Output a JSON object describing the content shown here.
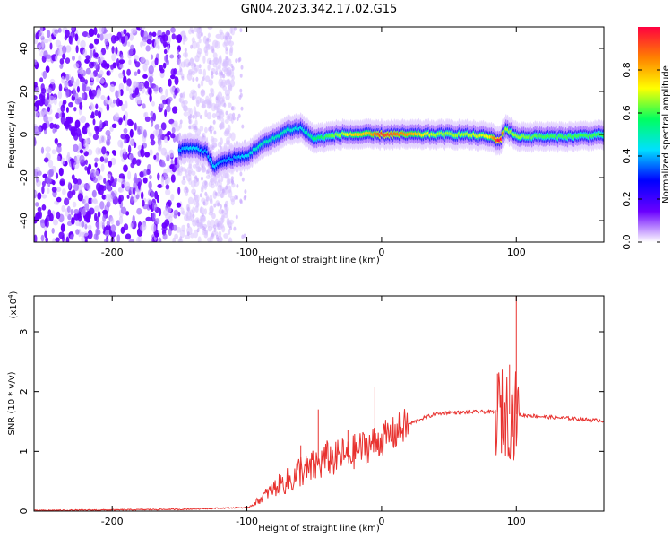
{
  "figure_title": "GN04.2023.342.17.02.G15",
  "chart_data": [
    {
      "type": "heatmap",
      "xlabel": "Height of straight line (km)",
      "ylabel": "Frequency (Hz)",
      "xlim": [
        -258,
        165
      ],
      "ylim": [
        -50,
        50
      ],
      "x_ticks": [
        -200,
        -100,
        0,
        100
      ],
      "y_ticks": [
        -40,
        -20,
        0,
        20,
        40
      ],
      "colorbar": {
        "label": "Normalized spectral amplitude",
        "range": [
          0,
          1
        ],
        "ticks": [
          0.0,
          0.2,
          0.4,
          0.6,
          0.8
        ],
        "tick_labels": [
          "0.0",
          "0.2",
          "0.4",
          "0.6",
          "0.8"
        ],
        "colors": [
          "#ffffff",
          "#6a00ff",
          "#0000ff",
          "#00e0ff",
          "#00ff60",
          "#ffff00",
          "#ff8000",
          "#ff0040"
        ]
      },
      "ridge": {
        "x": [
          -150,
          -140,
          -130,
          -125,
          -120,
          -110,
          -100,
          -90,
          -80,
          -70,
          -60,
          -50,
          -40,
          -30,
          -20,
          -10,
          0,
          20,
          40,
          60,
          80,
          88,
          92,
          100,
          120,
          140,
          165
        ],
        "freq": [
          -7,
          -6,
          -8,
          -15,
          -13,
          -11,
          -10,
          -5,
          -2,
          2,
          3,
          -2,
          -1,
          0,
          0,
          0,
          0,
          0,
          0,
          0,
          -1,
          -3,
          3,
          -1,
          -1,
          -1,
          0
        ],
        "amplitude": [
          0.35,
          0.4,
          0.35,
          0.4,
          0.35,
          0.35,
          0.4,
          0.45,
          0.45,
          0.45,
          0.4,
          0.5,
          0.55,
          0.6,
          0.7,
          0.7,
          0.85,
          0.75,
          0.6,
          0.6,
          0.65,
          0.95,
          0.6,
          0.6,
          0.55,
          0.55,
          0.55
        ]
      },
      "noise_region_x": [
        -258,
        -150
      ]
    },
    {
      "type": "line",
      "xlabel": "Height of straight line (km)",
      "ylabel": "SNR (10 * v/v)",
      "y_scale_label": "(x10",
      "y_scale_exponent": "4",
      "y_scale_close": ")",
      "xlim": [
        -258,
        165
      ],
      "ylim": [
        0,
        3.6
      ],
      "x_ticks": [
        -200,
        -100,
        0,
        100
      ],
      "y_ticks": [
        0,
        1,
        2,
        3
      ],
      "line_color": "#e8322f",
      "series": [
        {
          "x": [
            -258,
            -200,
            -150,
            -120,
            -100,
            -95,
            -90,
            -85,
            -80,
            -75,
            -70,
            -65,
            -60,
            -55,
            -50,
            -45,
            -40,
            -35,
            -30,
            -25,
            -20,
            -15,
            -10,
            -5,
            0,
            5,
            10,
            15,
            20,
            30,
            40,
            50,
            60,
            70,
            80,
            85,
            88,
            90,
            92,
            95,
            98,
            100,
            102,
            105,
            110,
            120,
            140,
            165
          ],
          "y": [
            0.0,
            0.01,
            0.02,
            0.04,
            0.05,
            0.12,
            0.2,
            0.3,
            0.38,
            0.45,
            0.5,
            0.55,
            0.7,
            0.65,
            0.75,
            0.8,
            0.9,
            0.85,
            0.95,
            0.9,
            1.0,
            1.05,
            1.1,
            1.15,
            1.2,
            1.25,
            1.3,
            1.4,
            1.45,
            1.55,
            1.62,
            1.65,
            1.65,
            1.66,
            1.66,
            1.65,
            1.65,
            1.65,
            1.65,
            1.62,
            1.6,
            1.62,
            1.62,
            1.6,
            1.6,
            1.58,
            1.55,
            1.51
          ]
        }
      ],
      "spikes": [
        {
          "x": -47,
          "y": 1.7
        },
        {
          "x": -5,
          "y": 2.07
        },
        {
          "x": -25,
          "y": 1.35
        },
        {
          "x": -60,
          "y": 1.1
        },
        {
          "x": 86,
          "y": 2.3
        },
        {
          "x": 95,
          "y": 2.45
        },
        {
          "x": 100,
          "y": 3.6
        }
      ]
    }
  ]
}
